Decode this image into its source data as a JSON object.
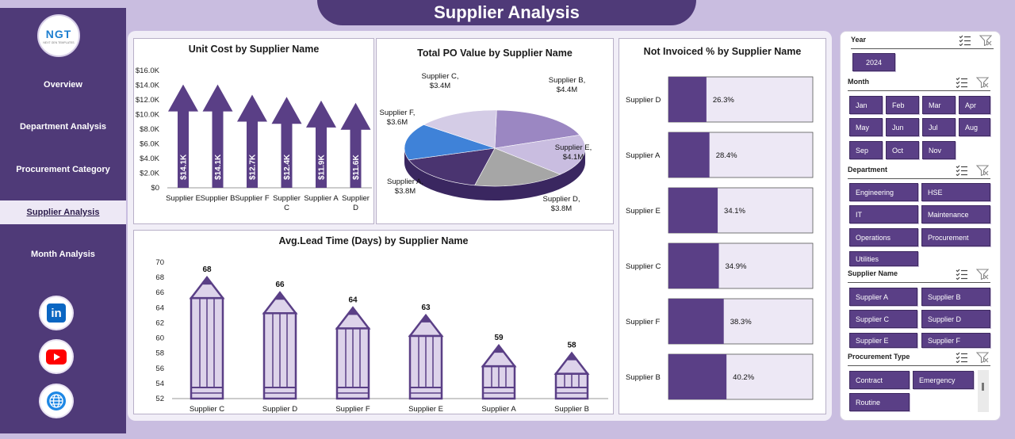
{
  "page_title": "Supplier Analysis",
  "logo": {
    "text": "NGT",
    "subtext": "NEXT GEN TEMPLATES"
  },
  "nav": {
    "items": [
      {
        "label": "Overview",
        "active": false
      },
      {
        "label": "Department Analysis",
        "active": false
      },
      {
        "label": "Procurement Category",
        "active": false
      },
      {
        "label": "Supplier Analysis",
        "active": true
      },
      {
        "label": "Month Analysis",
        "active": false
      }
    ]
  },
  "social": [
    {
      "icon": "linkedin-icon",
      "text": "in",
      "color": "#0a66c2"
    },
    {
      "icon": "youtube-icon",
      "color": "#ff0000"
    },
    {
      "icon": "globe-icon",
      "color": "#1e88e5"
    }
  ],
  "colors": {
    "primary": "#4f3a78",
    "bar": "#5a3f86",
    "bar_bg": "#ede8f5",
    "pencil": "#ddd3ea"
  },
  "chart_data": [
    {
      "type": "bar",
      "title": "Unit Cost by Supplier Name",
      "categories": [
        "Supplier E",
        "Supplier B",
        "Supplier F",
        "Supplier C",
        "Supplier A",
        "Supplier D"
      ],
      "values": [
        14100,
        14100,
        12700,
        12400,
        11900,
        11600
      ],
      "data_labels": [
        "$14.1K",
        "$14.1K",
        "$12.7K",
        "$12.4K",
        "$11.9K",
        "$11.6K"
      ],
      "y_ticks": [
        "$0",
        "$2.0K",
        "$4.0K",
        "$6.0K",
        "$8.0K",
        "$10.0K",
        "$12.0K",
        "$14.0K",
        "$16.0K"
      ],
      "ylim": [
        0,
        16000
      ]
    },
    {
      "type": "pie",
      "title": "Total PO Value by Supplier Name",
      "labels": [
        "Supplier B",
        "Supplier E",
        "Supplier D",
        "Supplier A",
        "Supplier F",
        "Supplier C"
      ],
      "values": [
        4.4,
        4.1,
        3.8,
        3.8,
        3.6,
        3.4
      ],
      "value_labels": [
        "$4.4M",
        "$4.1M",
        "$3.8M",
        "$3.8M",
        "$3.6M",
        "$3.4M"
      ],
      "colors": [
        "#9b87c2",
        "#c9bde0",
        "#a6a6a6",
        "#4a3470",
        "#3f82d8",
        "#d4cce6"
      ]
    },
    {
      "type": "bar",
      "title": "Avg.Lead Time (Days) by Supplier Name",
      "categories": [
        "Supplier C",
        "Supplier D",
        "Supplier F",
        "Supplier E",
        "Supplier A",
        "Supplier B"
      ],
      "values": [
        68,
        66,
        64,
        63,
        59,
        58
      ],
      "y_ticks": [
        "52",
        "54",
        "56",
        "58",
        "60",
        "62",
        "64",
        "66",
        "68",
        "70"
      ],
      "ylim": [
        52,
        70
      ]
    },
    {
      "type": "bar",
      "title": "Not Invoiced % by Supplier Name",
      "categories": [
        "Supplier D",
        "Supplier A",
        "Supplier E",
        "Supplier C",
        "Supplier F",
        "Supplier B"
      ],
      "values": [
        26.3,
        28.4,
        34.1,
        34.9,
        38.3,
        40.2
      ],
      "data_labels": [
        "26.3%",
        "28.4%",
        "34.1%",
        "34.9%",
        "38.3%",
        "40.2%"
      ],
      "xlim": [
        0,
        100
      ]
    }
  ],
  "slicers": {
    "year": {
      "label": "Year",
      "items": [
        "2024"
      ]
    },
    "month": {
      "label": "Month",
      "items": [
        "Jan",
        "Feb",
        "Mar",
        "Apr",
        "May",
        "Jun",
        "Jul",
        "Aug",
        "Sep",
        "Oct",
        "Nov"
      ]
    },
    "department": {
      "label": "Department",
      "items": [
        "Engineering",
        "HSE",
        "IT",
        "Maintenance",
        "Operations",
        "Procurement",
        "Utilities"
      ]
    },
    "supplier": {
      "label": "Supplier Name",
      "items": [
        "Supplier A",
        "Supplier B",
        "Supplier C",
        "Supplier D",
        "Supplier E",
        "Supplier F"
      ]
    },
    "procurement_type": {
      "label": "Procurement Type",
      "items": [
        "Contract",
        "Emergency",
        "Routine"
      ]
    }
  }
}
